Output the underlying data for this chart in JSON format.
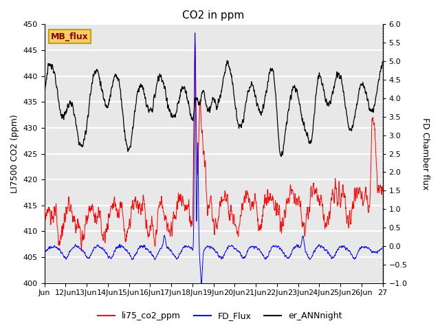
{
  "title": "CO2 in ppm",
  "ylabel_left": "LI7500 CO2 (ppm)",
  "ylabel_right": "FD Chamber flux",
  "ylim_left": [
    400,
    450
  ],
  "ylim_right": [
    -1.0,
    6.0
  ],
  "yticks_left": [
    400,
    405,
    410,
    415,
    420,
    425,
    430,
    435,
    440,
    445,
    450
  ],
  "yticks_right": [
    -1.0,
    -0.5,
    0.0,
    0.5,
    1.0,
    1.5,
    2.0,
    2.5,
    3.0,
    3.5,
    4.0,
    4.5,
    5.0,
    5.5,
    6.0
  ],
  "xtick_labels": [
    "Jun",
    "12Jun",
    "13Jun",
    "14Jun",
    "15Jun",
    "16Jun",
    "17Jun",
    "18Jun",
    "19Jun",
    "20Jun",
    "21Jun",
    "22Jun",
    "23Jun",
    "24Jun",
    "25Jun",
    "26Jun",
    "27"
  ],
  "bg_color": "#e8e8e8",
  "grid_color": "white",
  "annotation_text": "MB_flux",
  "annotation_color": "#8b0000",
  "annotation_bg": "#f5d060",
  "annotation_border": "#c8a000",
  "line_red": "#ff0000",
  "line_blue": "#0000ff",
  "line_black": "#000000",
  "legend_labels": [
    "li75_co2_ppm",
    "FD_Flux",
    "er_ANNnight"
  ],
  "title_fontsize": 11,
  "axis_fontsize": 9,
  "tick_fontsize": 8
}
